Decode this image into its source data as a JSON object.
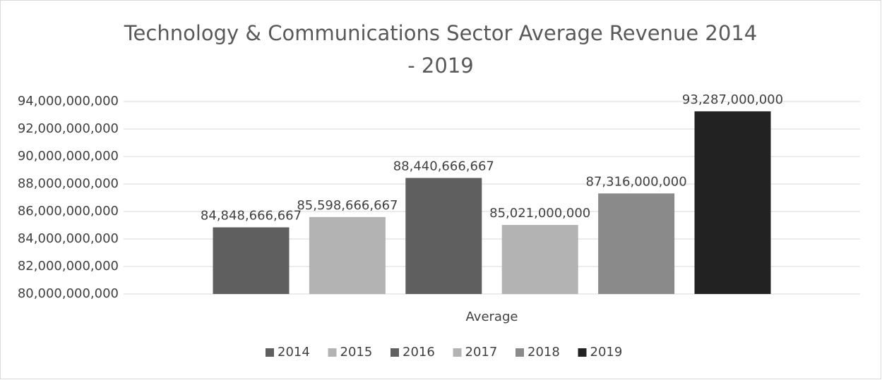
{
  "chart_data": {
    "type": "bar",
    "title": "Technology & Communications Sector Average Revenue 2014 - 2019",
    "categories": [
      "Average"
    ],
    "series": [
      {
        "name": "2014",
        "color": "#5f5f5f",
        "values": [
          84848666667
        ],
        "value_labels": [
          "84,848,666,667"
        ]
      },
      {
        "name": "2015",
        "color": "#b3b3b3",
        "values": [
          85598666667
        ],
        "value_labels": [
          "85,598,666,667"
        ]
      },
      {
        "name": "2016",
        "color": "#5f5f5f",
        "values": [
          88440666667
        ],
        "value_labels": [
          "88,440,666,667"
        ]
      },
      {
        "name": "2017",
        "color": "#b3b3b3",
        "values": [
          85021000000
        ],
        "value_labels": [
          "85,021,000,000"
        ]
      },
      {
        "name": "2018",
        "color": "#8a8a8a",
        "values": [
          87316000000
        ],
        "value_labels": [
          "87,316,000,000"
        ]
      },
      {
        "name": "2019",
        "color": "#222222",
        "values": [
          93287000000
        ],
        "value_labels": [
          "93,287,000,000"
        ]
      }
    ],
    "ylim": [
      80000000000,
      94000000000
    ],
    "yticks": [
      {
        "value": 80000000000,
        "label": "80,000,000,000"
      },
      {
        "value": 82000000000,
        "label": "82,000,000,000"
      },
      {
        "value": 84000000000,
        "label": "84,000,000,000"
      },
      {
        "value": 86000000000,
        "label": "86,000,000,000"
      },
      {
        "value": 88000000000,
        "label": "88,000,000,000"
      },
      {
        "value": 90000000000,
        "label": "90,000,000,000"
      },
      {
        "value": 92000000000,
        "label": "92,000,000,000"
      },
      {
        "value": 94000000000,
        "label": "94,000,000,000"
      }
    ],
    "grid": true,
    "legend": "bottom"
  }
}
